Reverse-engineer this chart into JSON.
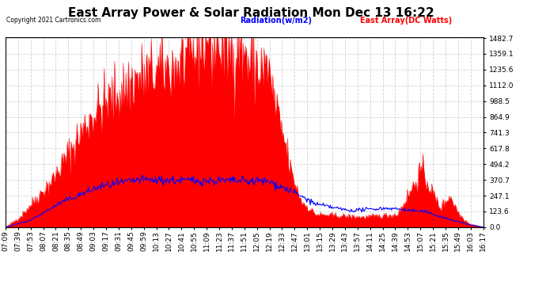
{
  "title": "East Array Power & Solar Radiation Mon Dec 13 16:22",
  "copyright": "Copyright 2021 Cartronics.com",
  "legend_radiation": "Radiation(w/m2)",
  "legend_east_array": "East Array(DC Watts)",
  "radiation_color": "blue",
  "east_array_color": "red",
  "background_color": "#ffffff",
  "grid_color": "#aaaaaa",
  "yticks": [
    0.0,
    123.6,
    247.1,
    370.7,
    494.2,
    617.8,
    741.3,
    864.9,
    988.5,
    1112.0,
    1235.6,
    1359.1,
    1482.7
  ],
  "ymax": 1482.7,
  "ymin": 0.0,
  "title_fontsize": 11,
  "tick_fontsize": 6.5,
  "x_labels": [
    "07:09",
    "07:39",
    "07:53",
    "08:07",
    "08:21",
    "08:35",
    "08:49",
    "09:03",
    "09:17",
    "09:31",
    "09:45",
    "09:59",
    "10:13",
    "10:27",
    "10:41",
    "10:55",
    "11:09",
    "11:23",
    "11:37",
    "11:51",
    "12:05",
    "12:19",
    "12:33",
    "12:47",
    "13:01",
    "13:15",
    "13:29",
    "13:43",
    "13:57",
    "14:11",
    "14:25",
    "14:39",
    "14:53",
    "15:07",
    "15:21",
    "15:35",
    "15:49",
    "16:03",
    "16:17"
  ]
}
